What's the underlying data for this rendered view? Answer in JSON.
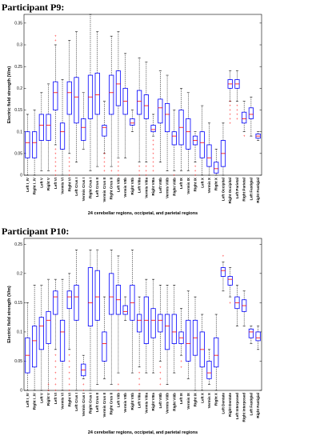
{
  "chart_data": [
    {
      "type": "box",
      "title": "Participant P9:",
      "xlabel": "24 cerebellar regions, occipetal, and parietal regions",
      "ylabel": "Electric field strength (V/m)",
      "ylim": [
        0,
        0.37
      ],
      "yticks": [
        0,
        0.05,
        0.1,
        0.15,
        0.2,
        0.25,
        0.3,
        0.35
      ],
      "box_color": "#0000ff",
      "median_color": "#ff0000",
      "outlier_color": "#ff0000",
      "categories": [
        "Left I_IV",
        "Right I_IV",
        "Left V",
        "Right V",
        "Left VI",
        "Vermis VI",
        "Right VI",
        "Left Crus I",
        "Vermis Crus I",
        "Right Crus I",
        "Left Crus II",
        "Vermis Crus II",
        "Right Crus II",
        "Left VIIb",
        "Vermis VIIb",
        "Right VIIb",
        "Left VIIIa",
        "Vermis VIIIa",
        "Right VIIIa",
        "Left VIIIb",
        "Vermis VIIIb",
        "Right VIIIb",
        "Left IX",
        "Vermis IX",
        "Right IX",
        "Left X",
        "Vermis X",
        "Right X",
        "Left Occipital",
        "Right Occipital",
        "Left Parietal",
        "Right Parietal",
        "Left Fastigial",
        "Right Fastigial"
      ],
      "boxes": [
        {
          "whislo": 0.0,
          "q1": 0.04,
          "med": 0.075,
          "q3": 0.1,
          "whishi": 0.14,
          "outliers": []
        },
        {
          "whislo": 0.0,
          "q1": 0.04,
          "med": 0.075,
          "q3": 0.1,
          "whishi": 0.15,
          "outliers": []
        },
        {
          "whislo": 0.01,
          "q1": 0.08,
          "med": 0.115,
          "q3": 0.14,
          "whishi": 0.19,
          "outliers": []
        },
        {
          "whislo": 0.01,
          "q1": 0.08,
          "med": 0.115,
          "q3": 0.14,
          "whishi": 0.21,
          "outliers": []
        },
        {
          "whislo": 0.07,
          "q1": 0.15,
          "med": 0.19,
          "q3": 0.215,
          "whishi": 0.3,
          "outliers": [
            0.0,
            0.01,
            0.02,
            0.03,
            0.04,
            0.05,
            0.06,
            0.31,
            0.32
          ]
        },
        {
          "whislo": 0.0,
          "q1": 0.06,
          "med": 0.1,
          "q3": 0.12,
          "whishi": 0.22,
          "outliers": []
        },
        {
          "whislo": 0.05,
          "q1": 0.14,
          "med": 0.19,
          "q3": 0.215,
          "whishi": 0.31,
          "outliers": [
            0.0,
            0.01,
            0.02,
            0.03,
            0.04
          ]
        },
        {
          "whislo": 0.03,
          "q1": 0.12,
          "med": 0.18,
          "q3": 0.225,
          "whishi": 0.33,
          "outliers": []
        },
        {
          "whislo": 0.06,
          "q1": 0.08,
          "med": 0.11,
          "q3": 0.13,
          "whishi": 0.19,
          "outliers": []
        },
        {
          "whislo": 0.01,
          "q1": 0.13,
          "med": 0.18,
          "q3": 0.23,
          "whishi": 0.37,
          "outliers": []
        },
        {
          "whislo": 0.02,
          "q1": 0.14,
          "med": 0.185,
          "q3": 0.235,
          "whishi": 0.33,
          "outliers": []
        },
        {
          "whislo": 0.05,
          "q1": 0.09,
          "med": 0.11,
          "q3": 0.115,
          "whishi": 0.17,
          "outliers": [
            0.01,
            0.02,
            0.03,
            0.04,
            0.05
          ]
        },
        {
          "whislo": 0.02,
          "q1": 0.14,
          "med": 0.19,
          "q3": 0.23,
          "whishi": 0.32,
          "outliers": [
            0.01
          ]
        },
        {
          "whislo": 0.04,
          "q1": 0.16,
          "med": 0.21,
          "q3": 0.24,
          "whishi": 0.33,
          "outliers": [
            0.0,
            0.01,
            0.02,
            0.03
          ]
        },
        {
          "whislo": 0.04,
          "q1": 0.14,
          "med": 0.17,
          "q3": 0.2,
          "whishi": 0.28,
          "outliers": []
        },
        {
          "whislo": 0.1,
          "q1": 0.115,
          "med": 0.12,
          "q3": 0.13,
          "whishi": 0.15,
          "outliers": []
        },
        {
          "whislo": 0.03,
          "q1": 0.14,
          "med": 0.17,
          "q3": 0.195,
          "whishi": 0.27,
          "outliers": [
            0.0,
            0.01,
            0.02
          ]
        },
        {
          "whislo": 0.03,
          "q1": 0.13,
          "med": 0.16,
          "q3": 0.185,
          "whishi": 0.26,
          "outliers": [
            0.0,
            0.01,
            0.02
          ]
        },
        {
          "whislo": 0.09,
          "q1": 0.1,
          "med": 0.105,
          "q3": 0.115,
          "whishi": 0.14,
          "outliers": [
            0.01,
            0.02,
            0.03,
            0.04,
            0.05,
            0.06,
            0.07,
            0.08
          ]
        },
        {
          "whislo": 0.03,
          "q1": 0.12,
          "med": 0.155,
          "q3": 0.175,
          "whishi": 0.24,
          "outliers": []
        },
        {
          "whislo": 0.01,
          "q1": 0.1,
          "med": 0.14,
          "q3": 0.165,
          "whishi": 0.23,
          "outliers": []
        },
        {
          "whislo": 0.01,
          "q1": 0.07,
          "med": 0.09,
          "q3": 0.1,
          "whishi": 0.15,
          "outliers": [
            0.0
          ]
        },
        {
          "whislo": 0.01,
          "q1": 0.07,
          "med": 0.11,
          "q3": 0.15,
          "whishi": 0.2,
          "outliers": []
        },
        {
          "whislo": 0.01,
          "q1": 0.06,
          "med": 0.1,
          "q3": 0.13,
          "whishi": 0.19,
          "outliers": []
        },
        {
          "whislo": 0.03,
          "q1": 0.07,
          "med": 0.08,
          "q3": 0.09,
          "whishi": 0.1,
          "outliers": [
            0.0,
            0.01,
            0.02
          ]
        },
        {
          "whislo": 0.0,
          "q1": 0.04,
          "med": 0.075,
          "q3": 0.1,
          "whishi": 0.16,
          "outliers": []
        },
        {
          "whislo": 0.0,
          "q1": 0.02,
          "med": 0.04,
          "q3": 0.07,
          "whishi": 0.12,
          "outliers": []
        },
        {
          "whislo": 0.0,
          "q1": 0.005,
          "med": 0.015,
          "q3": 0.03,
          "whishi": 0.06,
          "outliers": []
        },
        {
          "whislo": 0.0,
          "q1": 0.02,
          "med": 0.05,
          "q3": 0.08,
          "whishi": 0.12,
          "outliers": []
        },
        {
          "whislo": 0.17,
          "q1": 0.2,
          "med": 0.21,
          "q3": 0.22,
          "whishi": 0.24,
          "outliers": [
            0.12,
            0.13,
            0.14,
            0.15,
            0.16,
            0.17
          ]
        },
        {
          "whislo": 0.17,
          "q1": 0.2,
          "med": 0.21,
          "q3": 0.22,
          "whishi": 0.24,
          "outliers": [
            0.13,
            0.14,
            0.15,
            0.16
          ]
        },
        {
          "whislo": 0.1,
          "q1": 0.12,
          "med": 0.13,
          "q3": 0.145,
          "whishi": 0.17,
          "outliers": [
            0.09
          ]
        },
        {
          "whislo": 0.09,
          "q1": 0.13,
          "med": 0.14,
          "q3": 0.155,
          "whishi": 0.18,
          "outliers": []
        },
        {
          "whislo": 0.08,
          "q1": 0.085,
          "med": 0.09,
          "q3": 0.095,
          "whishi": 0.1,
          "outliers": []
        }
      ]
    },
    {
      "type": "box",
      "title": "Participant P10:",
      "xlabel": "24 cerebellar regions, occipetal, and parietal regions",
      "ylabel": "Electric field strength (V/m)",
      "ylim": [
        0,
        0.26
      ],
      "yticks": [
        0,
        0.05,
        0.1,
        0.15,
        0.2,
        0.25
      ],
      "box_color": "#0000ff",
      "median_color": "#ff0000",
      "outlier_color": "#ff0000",
      "categories": [
        "Left I_IV",
        "Right I_IV",
        "Left V",
        "Right V",
        "Left VI",
        "Vermis VI",
        "Right VI",
        "Left Crus I",
        "Vermis Crus I",
        "Right Crus I",
        "Left Crus II",
        "Vermis Crus II",
        "Right Crus II",
        "Left VIIb",
        "Vermis VIIb",
        "Right VIIb",
        "Left VIIIa",
        "Vermis VIIIa",
        "Right VIIIa",
        "Left VIIIb",
        "Vermis VIIIb",
        "Right VIIIb",
        "Left IX",
        "Vermis IX",
        "Right IX",
        "Left X",
        "Vermis X",
        "Right X",
        "Left Dentate",
        "Right Dentate",
        "Left Interposed",
        "Right Interposed",
        "Left Fastigial",
        "Right Fastigial"
      ],
      "boxes": [
        {
          "whislo": 0.0,
          "q1": 0.03,
          "med": 0.06,
          "q3": 0.09,
          "whishi": 0.15,
          "outliers": []
        },
        {
          "whislo": 0.0,
          "q1": 0.04,
          "med": 0.085,
          "q3": 0.11,
          "whishi": 0.18,
          "outliers": []
        },
        {
          "whislo": 0.0,
          "q1": 0.07,
          "med": 0.11,
          "q3": 0.125,
          "whishi": 0.18,
          "outliers": []
        },
        {
          "whislo": 0.0,
          "q1": 0.08,
          "med": 0.12,
          "q3": 0.135,
          "whishi": 0.19,
          "outliers": [
            0.0,
            0.01
          ]
        },
        {
          "whislo": 0.07,
          "q1": 0.13,
          "med": 0.16,
          "q3": 0.17,
          "whishi": 0.19,
          "outliers": [
            0.0,
            0.01,
            0.02,
            0.03,
            0.04,
            0.05,
            0.06
          ]
        },
        {
          "whislo": 0.0,
          "q1": 0.05,
          "med": 0.1,
          "q3": 0.12,
          "whishi": 0.19,
          "outliers": []
        },
        {
          "whislo": 0.07,
          "q1": 0.14,
          "med": 0.16,
          "q3": 0.17,
          "whishi": 0.2,
          "outliers": [
            0.0,
            0.01,
            0.02,
            0.03,
            0.04,
            0.05,
            0.06
          ]
        },
        {
          "whislo": 0.0,
          "q1": 0.12,
          "med": 0.16,
          "q3": 0.18,
          "whishi": 0.24,
          "outliers": []
        },
        {
          "whislo": 0.02,
          "q1": 0.025,
          "med": 0.035,
          "q3": 0.045,
          "whishi": 0.06,
          "outliers": [
            0.0,
            0.01
          ]
        },
        {
          "whislo": 0.0,
          "q1": 0.11,
          "med": 0.15,
          "q3": 0.21,
          "whishi": 0.24,
          "outliers": []
        },
        {
          "whislo": 0.01,
          "q1": 0.12,
          "med": 0.16,
          "q3": 0.205,
          "whishi": 0.24,
          "outliers": []
        },
        {
          "whislo": 0.02,
          "q1": 0.05,
          "med": 0.08,
          "q3": 0.1,
          "whishi": 0.16,
          "outliers": []
        },
        {
          "whislo": 0.01,
          "q1": 0.13,
          "med": 0.16,
          "q3": 0.2,
          "whishi": 0.24,
          "outliers": []
        },
        {
          "whislo": 0.03,
          "q1": 0.13,
          "med": 0.155,
          "q3": 0.18,
          "whishi": 0.23,
          "outliers": [
            0.0,
            0.01
          ]
        },
        {
          "whislo": 0.12,
          "q1": 0.13,
          "med": 0.135,
          "q3": 0.145,
          "whishi": 0.16,
          "outliers": []
        },
        {
          "whislo": 0.03,
          "q1": 0.12,
          "med": 0.15,
          "q3": 0.18,
          "whishi": 0.24,
          "outliers": []
        },
        {
          "whislo": 0.04,
          "q1": 0.1,
          "med": 0.12,
          "q3": 0.13,
          "whishi": 0.16,
          "outliers": [
            0.0,
            0.01,
            0.02,
            0.03
          ]
        },
        {
          "whislo": 0.03,
          "q1": 0.08,
          "med": 0.12,
          "q3": 0.16,
          "whishi": 0.19,
          "outliers": []
        },
        {
          "whislo": 0.03,
          "q1": 0.09,
          "med": 0.12,
          "q3": 0.14,
          "whishi": 0.19,
          "outliers": []
        },
        {
          "whislo": 0.05,
          "q1": 0.1,
          "med": 0.12,
          "q3": 0.13,
          "whishi": 0.18,
          "outliers": [
            0.01,
            0.02,
            0.03,
            0.04
          ]
        },
        {
          "whislo": 0.01,
          "q1": 0.07,
          "med": 0.11,
          "q3": 0.13,
          "whishi": 0.18,
          "outliers": []
        },
        {
          "whislo": 0.03,
          "q1": 0.08,
          "med": 0.1,
          "q3": 0.13,
          "whishi": 0.18,
          "outliers": []
        },
        {
          "whislo": 0.06,
          "q1": 0.08,
          "med": 0.09,
          "q3": 0.1,
          "whishi": 0.14,
          "outliers": [
            0.04,
            0.05
          ]
        },
        {
          "whislo": 0.02,
          "q1": 0.05,
          "med": 0.08,
          "q3": 0.12,
          "whishi": 0.17,
          "outliers": []
        },
        {
          "whislo": 0.0,
          "q1": 0.06,
          "med": 0.09,
          "q3": 0.12,
          "whishi": 0.16,
          "outliers": []
        },
        {
          "whislo": 0.0,
          "q1": 0.04,
          "med": 0.07,
          "q3": 0.1,
          "whishi": 0.13,
          "outliers": []
        },
        {
          "whislo": 0.01,
          "q1": 0.02,
          "med": 0.03,
          "q3": 0.05,
          "whishi": 0.07,
          "outliers": []
        },
        {
          "whislo": 0.0,
          "q1": 0.04,
          "med": 0.06,
          "q3": 0.09,
          "whishi": 0.13,
          "outliers": []
        },
        {
          "whislo": 0.17,
          "q1": 0.195,
          "med": 0.205,
          "q3": 0.21,
          "whishi": 0.22,
          "outliers": [
            0.23
          ]
        },
        {
          "whislo": 0.16,
          "q1": 0.18,
          "med": 0.19,
          "q3": 0.195,
          "whishi": 0.21,
          "outliers": [
            0.15
          ]
        },
        {
          "whislo": 0.11,
          "q1": 0.14,
          "med": 0.15,
          "q3": 0.16,
          "whishi": 0.18,
          "outliers": []
        },
        {
          "whislo": 0.11,
          "q1": 0.135,
          "med": 0.145,
          "q3": 0.155,
          "whishi": 0.17,
          "outliers": []
        },
        {
          "whislo": 0.08,
          "q1": 0.09,
          "med": 0.1,
          "q3": 0.105,
          "whishi": 0.11,
          "outliers": []
        },
        {
          "whislo": 0.07,
          "q1": 0.085,
          "med": 0.09,
          "q3": 0.1,
          "whishi": 0.11,
          "outliers": []
        }
      ]
    }
  ]
}
